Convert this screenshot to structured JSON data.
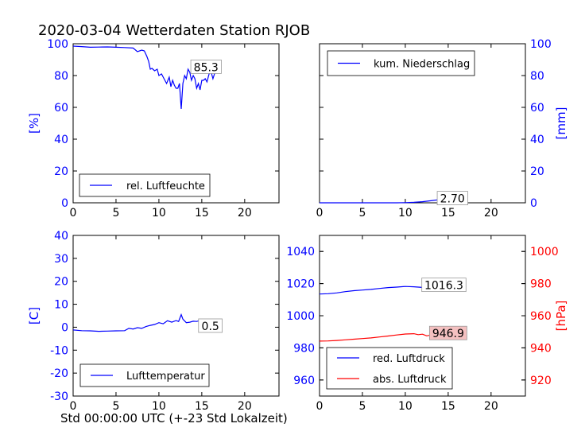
{
  "title": "2020-03-04 Wetterdaten Station RJOB",
  "xlabel": "Std 00:00:00 UTC (+-23 Std Lokalzeit)",
  "colors": {
    "blue": "#0000ff",
    "red": "#ff0000",
    "axis": "#000000"
  },
  "chart_data": [
    {
      "type": "line",
      "panel": "top-left",
      "ylabel_left": "[%]",
      "xlim": [
        0,
        24
      ],
      "ylim": [
        0,
        100
      ],
      "xticks": [
        0,
        5,
        10,
        15,
        20
      ],
      "yticks": [
        0,
        20,
        40,
        60,
        80,
        100
      ],
      "legend": {
        "placement": "lower-left",
        "entries": [
          {
            "label": "rel. Luftfeuchte",
            "color": "#0000ff"
          }
        ]
      },
      "annotation": {
        "text": "85.3",
        "x": 15.5,
        "y": 85.3
      },
      "series": [
        {
          "name": "rel. Luftfeuchte",
          "color": "#0000ff",
          "x": [
            0,
            1,
            2,
            3,
            4,
            5,
            6,
            7,
            7.5,
            8,
            8.3,
            8.6,
            8.8,
            9,
            9.2,
            9.5,
            9.8,
            10,
            10.3,
            10.6,
            10.9,
            11.2,
            11.4,
            11.6,
            11.8,
            12,
            12.2,
            12.4,
            12.6,
            12.8,
            13,
            13.2,
            13.4,
            13.6,
            13.8,
            14,
            14.2,
            14.4,
            14.6,
            14.8,
            15,
            15.2,
            15.4,
            15.6,
            15.8,
            16,
            16.3,
            16.6,
            16.9
          ],
          "y": [
            98.5,
            98.2,
            97.8,
            97.9,
            98,
            97.8,
            97.6,
            97.3,
            95,
            96,
            95.5,
            92,
            89,
            84,
            84.5,
            83,
            84,
            80,
            81,
            78,
            75,
            79,
            73,
            77,
            74,
            72,
            72,
            75,
            59,
            75,
            80,
            78,
            84,
            82,
            77,
            80,
            78,
            72,
            75,
            71,
            77,
            77,
            78,
            76,
            80,
            84,
            78,
            83,
            85.3
          ]
        }
      ]
    },
    {
      "type": "line",
      "panel": "top-right",
      "ylabel_right": "[mm]",
      "xlim": [
        0,
        24
      ],
      "ylim": [
        0,
        100
      ],
      "xticks": [
        0,
        5,
        10,
        15,
        20
      ],
      "yticks": [
        0,
        20,
        40,
        60,
        80,
        100
      ],
      "legend": {
        "placement": "upper-left",
        "entries": [
          {
            "label": "kum. Niederschlag",
            "color": "#0000ff"
          }
        ]
      },
      "annotation": {
        "text": "2.70",
        "x": 15.5,
        "y": 2.7
      },
      "series": [
        {
          "name": "kum. Niederschlag",
          "color": "#0000ff",
          "x": [
            0,
            5,
            9,
            10,
            11,
            12,
            13,
            14,
            14.5,
            15,
            16,
            17
          ],
          "y": [
            0,
            0,
            0,
            0.1,
            0.3,
            0.7,
            1.3,
            2.0,
            2.4,
            2.6,
            2.7,
            2.7
          ]
        }
      ]
    },
    {
      "type": "line",
      "panel": "bottom-left",
      "ylabel_left": "[C]",
      "xlim": [
        0,
        24
      ],
      "ylim": [
        -30,
        40
      ],
      "xticks": [
        0,
        5,
        10,
        15,
        20
      ],
      "yticks": [
        -30,
        -20,
        -10,
        0,
        10,
        20,
        30,
        40
      ],
      "legend": {
        "placement": "lower-left",
        "entries": [
          {
            "label": "Lufttemperatur",
            "color": "#0000ff"
          }
        ]
      },
      "annotation": {
        "text": "0.5",
        "x": 16.0,
        "y": 0.5
      },
      "series": [
        {
          "name": "Lufttemperatur",
          "color": "#0000ff",
          "x": [
            0,
            1,
            2,
            3,
            4,
            5,
            6,
            6.5,
            7,
            7.5,
            8,
            8.5,
            9,
            9.5,
            10,
            10.5,
            11,
            11.5,
            12,
            12.3,
            12.6,
            12.8,
            13.2,
            13.6,
            14,
            14.4,
            14.8,
            15.2,
            15.6,
            16,
            16.4,
            16.9
          ],
          "y": [
            -1.2,
            -1.5,
            -1.6,
            -1.8,
            -1.7,
            -1.6,
            -1.5,
            -0.5,
            -0.8,
            -0.2,
            -0.5,
            0.3,
            0.8,
            1.2,
            2.0,
            1.5,
            2.8,
            2.2,
            2.9,
            2.5,
            5.5,
            3.5,
            2.0,
            2.2,
            2.6,
            2.5,
            2.9,
            3.2,
            2.3,
            2.0,
            1.0,
            0.5
          ]
        }
      ]
    },
    {
      "type": "line",
      "panel": "bottom-right",
      "ylabel_right": "[hPa]",
      "xlim": [
        0,
        24
      ],
      "ylim_left": [
        950,
        1050
      ],
      "ylim_right": [
        910,
        1010
      ],
      "xticks": [
        0,
        5,
        10,
        15,
        20
      ],
      "yticks_left": [
        960,
        980,
        1000,
        1020,
        1040
      ],
      "yticks_right": [
        920,
        940,
        960,
        980,
        1000
      ],
      "legend": {
        "placement": "lower-left",
        "entries": [
          {
            "label": "red. Luftdruck",
            "color": "#0000ff"
          },
          {
            "label": "abs. Luftdruck",
            "color": "#ff0000"
          }
        ]
      },
      "annotations": [
        {
          "text": "1016.3",
          "x": 14.5,
          "y": 1019.0,
          "axis": "left",
          "color": "#0000ff"
        },
        {
          "text": "946.9",
          "x": 15.0,
          "y": 949.0,
          "axis": "right",
          "color": "#ff0000"
        }
      ],
      "series": [
        {
          "name": "red. Luftdruck",
          "color": "#0000ff",
          "axis": "left",
          "x": [
            0,
            1,
            2,
            3,
            4,
            5,
            6,
            7,
            8,
            9,
            10,
            11,
            12,
            13,
            14,
            15,
            16,
            17
          ],
          "y": [
            1013.5,
            1013.7,
            1014.2,
            1015.0,
            1015.6,
            1016.0,
            1016.4,
            1017.0,
            1017.5,
            1017.8,
            1018.2,
            1018.0,
            1017.6,
            1017.0,
            1016.5,
            1016.4,
            1016.3,
            1016.3
          ]
        },
        {
          "name": "abs. Luftdruck",
          "color": "#ff0000",
          "axis": "right",
          "x": [
            0,
            1,
            2,
            3,
            4,
            5,
            6,
            7,
            8,
            9,
            10,
            11,
            11.5,
            12,
            12.5,
            13,
            13.5,
            14,
            14.5,
            15,
            16,
            17
          ],
          "y": [
            944.2,
            944.3,
            944.6,
            945.0,
            945.4,
            945.8,
            946.2,
            946.8,
            947.4,
            948.0,
            948.6,
            948.8,
            948.2,
            948.5,
            947.5,
            948.0,
            946.5,
            947.0,
            946.9,
            946.8,
            946.9,
            946.9
          ]
        }
      ]
    }
  ]
}
